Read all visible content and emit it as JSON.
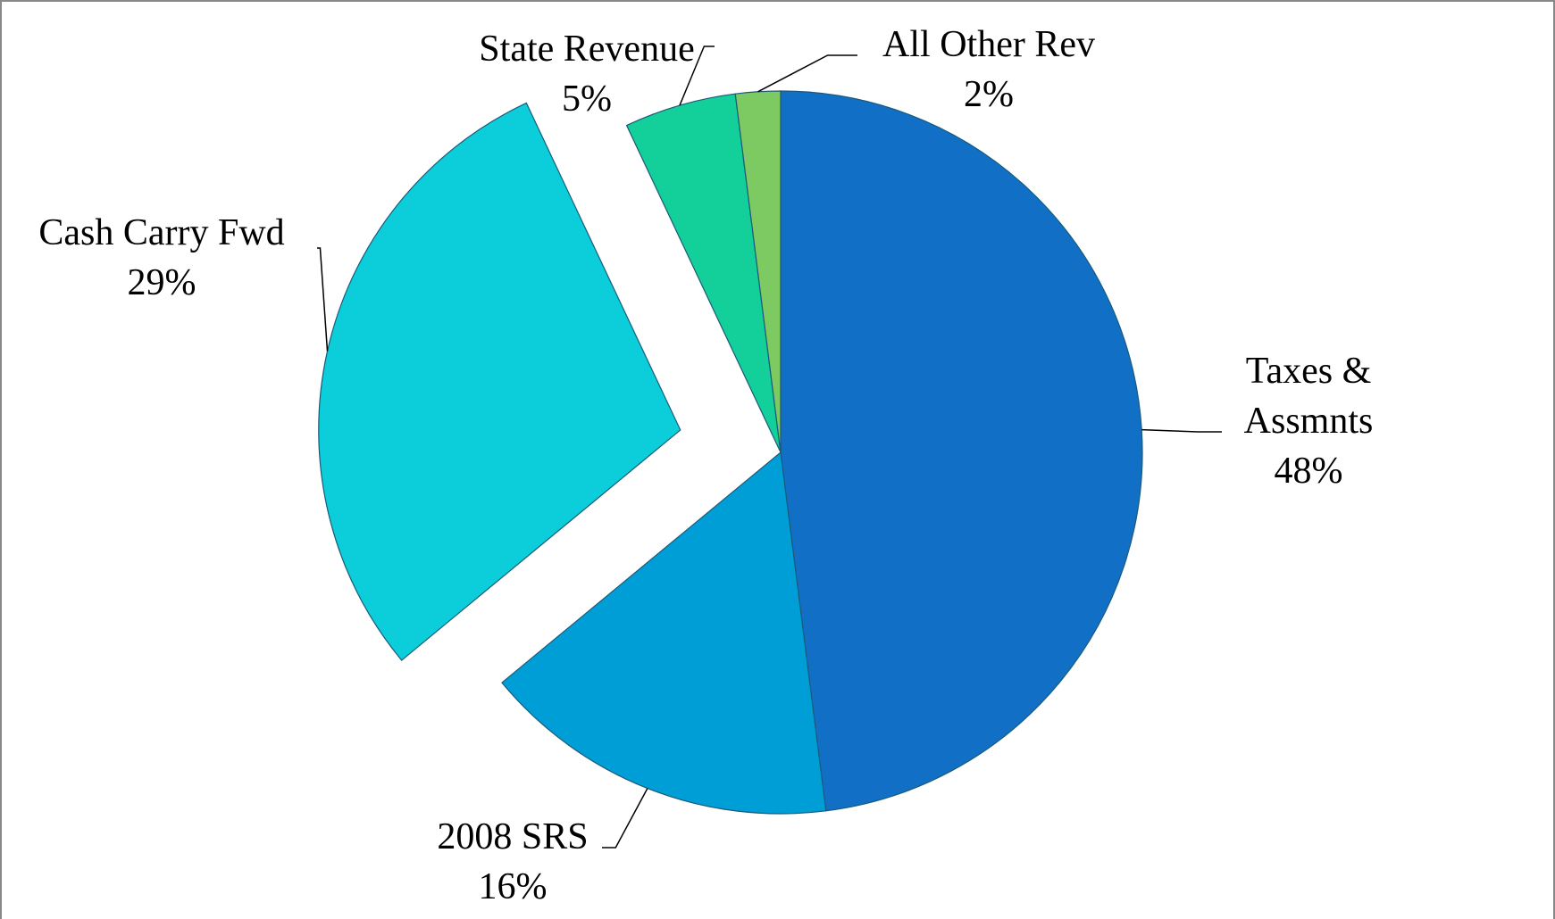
{
  "chart_data": {
    "type": "pie",
    "categories": [
      "Taxes & Assmnts",
      "2008 SRS",
      "Cash Carry Fwd",
      "State Revenue",
      "All Other Rev"
    ],
    "values": [
      48,
      16,
      29,
      5,
      2
    ],
    "value_labels": [
      "48%",
      "16%",
      "29%",
      "5%",
      "2%"
    ],
    "colors": [
      "#1170c6",
      "#009ed6",
      "#0cceda",
      "#13cf9a",
      "#7dc962"
    ],
    "exploded": [
      false,
      false,
      true,
      false,
      false
    ]
  }
}
